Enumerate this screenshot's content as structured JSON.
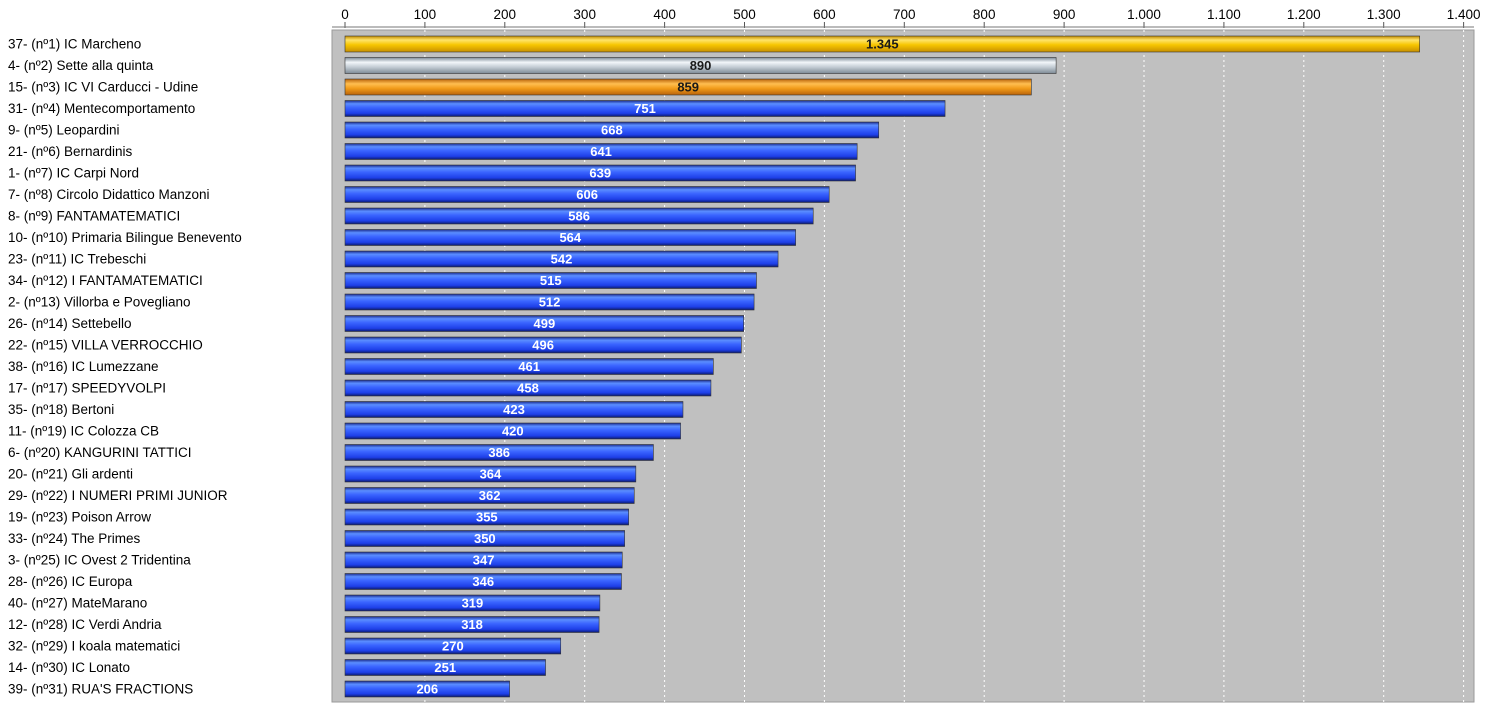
{
  "chart_data": {
    "type": "bar",
    "orientation": "horizontal",
    "title": "",
    "xlabel": "",
    "ylabel": "",
    "xlim": [
      0,
      1400
    ],
    "x_ticks": [
      0,
      100,
      200,
      300,
      400,
      500,
      600,
      700,
      800,
      900,
      1000,
      1100,
      1200,
      1300,
      1400
    ],
    "x_tick_labels": [
      "0",
      "100",
      "200",
      "300",
      "400",
      "500",
      "600",
      "700",
      "800",
      "900",
      "1.000",
      "1.100",
      "1.200",
      "1.300",
      "1.400"
    ],
    "x_axis_position": "top",
    "grid": "vertical dashed",
    "legend": "none",
    "colors": {
      "gold": "#f5c400",
      "silver": "#b8c4ce",
      "bronze": "#ee9410",
      "default": "#2a55ff",
      "plot_bg": "#c0c0c0"
    },
    "categories": [
      "37- (nº1) IC Marcheno",
      "4- (nº2) Sette alla quinta",
      "15- (nº3) IC VI Carducci - Udine",
      "31- (nº4) Mentecomportamento",
      "9- (nº5) Leopardini",
      "21- (nº6) Bernardinis",
      "1- (nº7) IC Carpi Nord",
      "7- (nº8) Circolo Didattico Manzoni",
      "8- (nº9) FANTAMATEMATICI",
      "10- (nº10) Primaria Bilingue Benevento",
      "23- (nº11) IC Trebeschi",
      "34- (nº12) I FANTAMATEMATICI",
      "2- (nº13) Villorba e Povegliano",
      "26- (nº14) Settebello",
      "22- (nº15) VILLA VERROCCHIO",
      "38- (nº16) IC Lumezzane",
      "17- (nº17) SPEEDYVOLPI",
      "35- (nº18) Bertoni",
      "11- (nº19) IC Colozza CB",
      "6- (nº20) KANGURINI TATTICI",
      "20- (nº21) Gli ardenti",
      "29- (nº22) I NUMERI PRIMI JUNIOR",
      "19- (nº23) Poison Arrow",
      "33- (nº24) The Primes",
      "3- (nº25) IC Ovest 2 Tridentina",
      "28- (nº26) IC Europa",
      "40- (nº27) MateMarano",
      "12- (nº28) IC Verdi Andria",
      "32- (nº29) I koala matematici",
      "14- (nº30) IC Lonato",
      "39- (nº31) RUA'S FRACTIONS"
    ],
    "values": [
      1345,
      890,
      859,
      751,
      668,
      641,
      639,
      606,
      586,
      564,
      542,
      515,
      512,
      499,
      496,
      461,
      458,
      423,
      420,
      386,
      364,
      362,
      355,
      350,
      347,
      346,
      319,
      318,
      270,
      251,
      206
    ],
    "value_labels": [
      "1.345",
      "890",
      "859",
      "751",
      "668",
      "641",
      "639",
      "606",
      "586",
      "564",
      "542",
      "515",
      "512",
      "499",
      "496",
      "461",
      "458",
      "423",
      "420",
      "386",
      "364",
      "362",
      "355",
      "350",
      "347",
      "346",
      "319",
      "318",
      "270",
      "251",
      "206"
    ]
  }
}
